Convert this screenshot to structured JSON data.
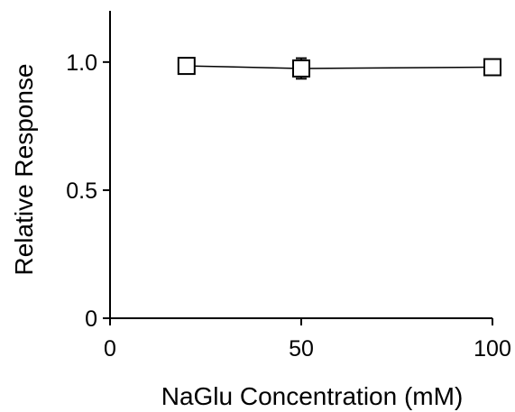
{
  "chart_data": {
    "type": "line",
    "title": "",
    "xlabel": "NaGlu Concentration (mM)",
    "ylabel": "Relative Response",
    "xlim": [
      0,
      100
    ],
    "ylim": [
      0,
      1.2
    ],
    "x_ticks": [
      0,
      50,
      100
    ],
    "x_tick_labels": [
      "0",
      "50",
      "100"
    ],
    "y_ticks": [
      0,
      0.5,
      1.0
    ],
    "y_tick_labels": [
      "0",
      "0.5",
      "1.0"
    ],
    "grid": false,
    "legend": "none",
    "series": [
      {
        "marker": "open-square",
        "color": "#000000",
        "x": [
          20,
          50,
          100
        ],
        "y": [
          0.985,
          0.975,
          0.98
        ],
        "error": [
          0.03,
          0.04,
          0.03
        ]
      }
    ]
  }
}
